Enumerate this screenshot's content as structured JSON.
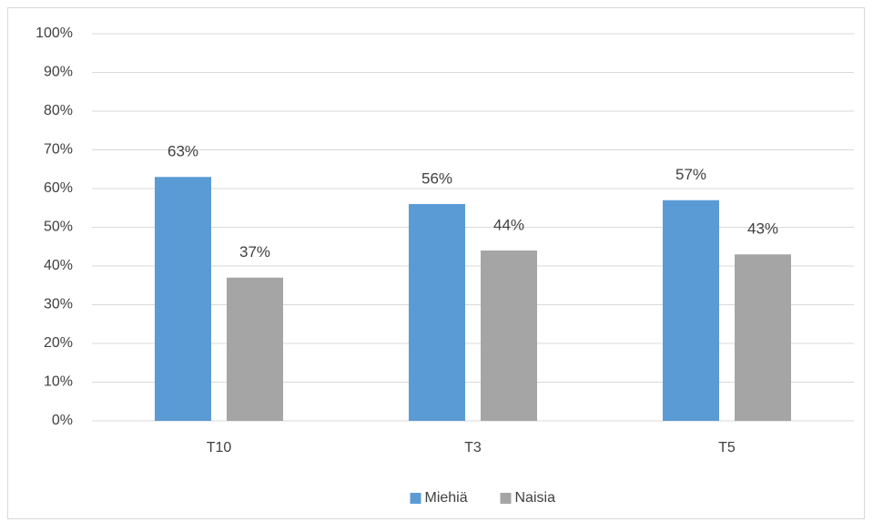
{
  "chart_data": {
    "type": "bar",
    "categories": [
      "T10",
      "T3",
      "T5"
    ],
    "series": [
      {
        "name": "Miehiä",
        "color": "#5b9bd5",
        "values": [
          63,
          56,
          57
        ],
        "value_labels": [
          "63%",
          "56%",
          "57%"
        ]
      },
      {
        "name": "Naisia",
        "color": "#a5a5a5",
        "values": [
          37,
          44,
          43
        ],
        "value_labels": [
          "37%",
          "44%",
          "43%"
        ]
      }
    ],
    "ylim": [
      0,
      100
    ],
    "yticks": [
      {
        "value": 0,
        "label": "0%"
      },
      {
        "value": 10,
        "label": "10%"
      },
      {
        "value": 20,
        "label": "20%"
      },
      {
        "value": 30,
        "label": "30%"
      },
      {
        "value": 40,
        "label": "40%"
      },
      {
        "value": 50,
        "label": "50%"
      },
      {
        "value": 60,
        "label": "60%"
      },
      {
        "value": 70,
        "label": "70%"
      },
      {
        "value": 80,
        "label": "80%"
      },
      {
        "value": 90,
        "label": "90%"
      },
      {
        "value": 100,
        "label": "100%"
      }
    ],
    "grid": true,
    "legend": "bottom"
  }
}
